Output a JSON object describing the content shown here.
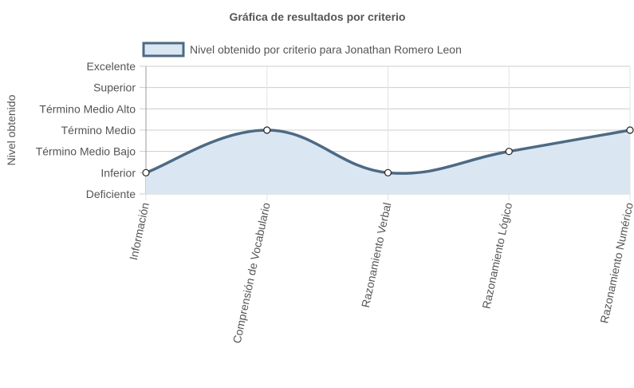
{
  "chart_data": {
    "type": "area",
    "title": "Gráfica de resultados por criterio",
    "ylabel": "Nivel obtenido",
    "xlabel": "",
    "legend_position": "top",
    "grid": true,
    "categories": [
      "Información",
      "Comprensión de Vocabulario",
      "Razonamiento Verbal",
      "Razonamiento Lógico",
      "Razonamiento Numérico"
    ],
    "y_levels": [
      "Deficiente",
      "Inferior",
      "Término Medio Bajo",
      "Término Medio",
      "Término Medio Alto",
      "Superior",
      "Excelente"
    ],
    "ylim": [
      0,
      6
    ],
    "series": [
      {
        "name": "Nivel obtenido por criterio para Jonathan Romero Leon",
        "values": [
          1,
          3,
          1,
          2,
          3
        ],
        "line_color": "#4d6a84",
        "fill_color": "#dae7f3"
      }
    ]
  }
}
